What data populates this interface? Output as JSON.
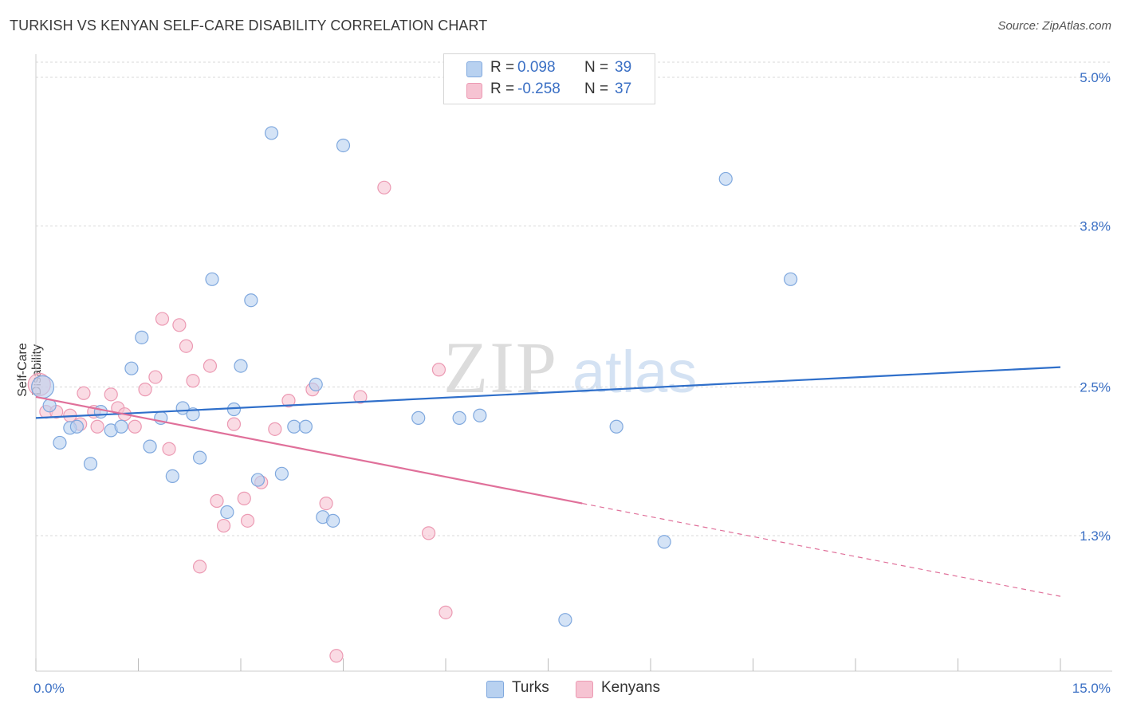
{
  "title": "TURKISH VS KENYAN SELF-CARE DISABILITY CORRELATION CHART",
  "source": "Source: ZipAtlas.com",
  "watermark": {
    "zip": "ZIP",
    "atlas": "atlas"
  },
  "legend_stats": [
    {
      "r_label": "R =",
      "r_value": "0.098",
      "n_label": "N =",
      "n_value": "39"
    },
    {
      "r_label": "R =",
      "r_value": "-0.258",
      "n_label": "N =",
      "n_value": "37"
    }
  ],
  "colors": {
    "turks_fill": "#b8d1f0",
    "turks_stroke": "#7fa8de",
    "turks_line": "#2f6fca",
    "kenyans_fill": "#f6c3d2",
    "kenyans_stroke": "#ec9ab3",
    "kenyans_line": "#e0709a",
    "tick_label": "#3a6fc4",
    "grid": "#d9d9d9"
  },
  "chart_data": {
    "type": "scatter",
    "title": "TURKISH VS KENYAN SELF-CARE DISABILITY CORRELATION CHART",
    "xlabel": "",
    "ylabel": "Self-Care Disability",
    "xlim": [
      0,
      15
    ],
    "ylim": [
      0.25,
      5.3
    ],
    "x_tick_labels": [
      {
        "value": 0,
        "label": "0.0%"
      },
      {
        "value": 15,
        "label": "15.0%"
      }
    ],
    "y_tick_labels": [
      {
        "value": 5.0,
        "label": "5.0%"
      },
      {
        "value": 3.8,
        "label": "3.8%"
      },
      {
        "value": 2.5,
        "label": "2.5%"
      },
      {
        "value": 1.3,
        "label": "1.3%"
      }
    ],
    "y_grid": [
      5.0,
      3.8,
      2.5,
      1.3
    ],
    "series": [
      {
        "name": "Turks",
        "points": [
          [
            0.1,
            2.5
          ],
          [
            0.2,
            2.35
          ],
          [
            0.35,
            2.05
          ],
          [
            0.5,
            2.17
          ],
          [
            0.6,
            2.18
          ],
          [
            0.8,
            1.88
          ],
          [
            0.95,
            2.3
          ],
          [
            1.1,
            2.15
          ],
          [
            1.25,
            2.18
          ],
          [
            1.4,
            2.65
          ],
          [
            1.55,
            2.9
          ],
          [
            1.67,
            2.02
          ],
          [
            1.83,
            2.25
          ],
          [
            2.0,
            1.78
          ],
          [
            2.15,
            2.33
          ],
          [
            2.3,
            2.28
          ],
          [
            2.4,
            1.93
          ],
          [
            2.58,
            3.37
          ],
          [
            2.8,
            1.49
          ],
          [
            2.9,
            2.32
          ],
          [
            3.0,
            2.67
          ],
          [
            3.15,
            3.2
          ],
          [
            3.25,
            1.75
          ],
          [
            3.45,
            4.55
          ],
          [
            3.6,
            1.8
          ],
          [
            3.78,
            2.18
          ],
          [
            3.95,
            2.18
          ],
          [
            4.1,
            2.52
          ],
          [
            4.2,
            1.45
          ],
          [
            4.35,
            1.42
          ],
          [
            4.5,
            4.45
          ],
          [
            5.6,
            2.25
          ],
          [
            6.2,
            2.25
          ],
          [
            6.5,
            2.27
          ],
          [
            7.75,
            0.62
          ],
          [
            8.5,
            2.18
          ],
          [
            9.2,
            1.25
          ],
          [
            10.1,
            4.18
          ],
          [
            11.05,
            3.37
          ]
        ]
      },
      {
        "name": "Kenyans",
        "points": [
          [
            0.05,
            2.52
          ],
          [
            0.15,
            2.3
          ],
          [
            0.3,
            2.3
          ],
          [
            0.5,
            2.27
          ],
          [
            0.65,
            2.2
          ],
          [
            0.7,
            2.45
          ],
          [
            0.85,
            2.3
          ],
          [
            0.9,
            2.18
          ],
          [
            1.1,
            2.44
          ],
          [
            1.2,
            2.33
          ],
          [
            1.3,
            2.28
          ],
          [
            1.45,
            2.18
          ],
          [
            1.6,
            2.48
          ],
          [
            1.75,
            2.58
          ],
          [
            1.85,
            3.05
          ],
          [
            1.95,
            2.0
          ],
          [
            2.1,
            3.0
          ],
          [
            2.2,
            2.83
          ],
          [
            2.3,
            2.55
          ],
          [
            2.55,
            2.67
          ],
          [
            2.65,
            1.58
          ],
          [
            2.75,
            1.38
          ],
          [
            2.9,
            2.2
          ],
          [
            3.05,
            1.6
          ],
          [
            3.1,
            1.42
          ],
          [
            3.3,
            1.73
          ],
          [
            3.5,
            2.16
          ],
          [
            3.7,
            2.39
          ],
          [
            4.05,
            2.48
          ],
          [
            4.25,
            1.56
          ],
          [
            4.4,
            0.33
          ],
          [
            4.75,
            2.42
          ],
          [
            5.1,
            4.11
          ],
          [
            5.75,
            1.32
          ],
          [
            5.9,
            2.64
          ],
          [
            6.0,
            0.68
          ],
          [
            2.4,
            1.05
          ]
        ]
      }
    ],
    "trend_lines": [
      {
        "series": "Turks",
        "style": "solid",
        "x": [
          0,
          15
        ],
        "y": [
          2.25,
          2.66
        ]
      },
      {
        "series": "Kenyans",
        "style": "solid",
        "x": [
          0,
          8.0
        ],
        "y": [
          2.42,
          1.56
        ]
      },
      {
        "series": "Kenyans",
        "style": "dashed",
        "x": [
          8.0,
          15
        ],
        "y": [
          1.56,
          0.81
        ]
      }
    ],
    "legend": [
      "Turks",
      "Kenyans"
    ],
    "legend_position": "bottom-center"
  }
}
